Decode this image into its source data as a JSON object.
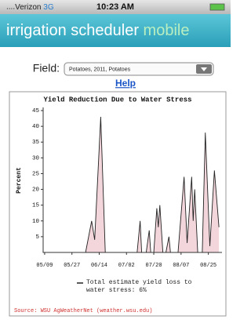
{
  "status_bar": {
    "carrier": "Verizon",
    "network": "3G",
    "time": "10:23 AM"
  },
  "header": {
    "title": "irrigation scheduler",
    "suffix": "mobile"
  },
  "field": {
    "label": "Field:",
    "selected": "Potatoes, 2011, Potatoes"
  },
  "help": "Help",
  "chart_data": {
    "type": "line",
    "title": "Yield Reduction Due to Water Stress",
    "y_label": "Percent",
    "x": [
      "05/08",
      "06/05",
      "06/09",
      "06/11",
      "06/15",
      "06/18",
      "07/09",
      "07/11",
      "07/12",
      "07/15",
      "07/17",
      "07/18",
      "07/20",
      "07/22",
      "07/23",
      "07/24",
      "07/26",
      "07/28",
      "07/30",
      "07/31",
      "08/05",
      "08/09",
      "08/11",
      "08/14",
      "08/15",
      "08/16",
      "08/18",
      "08/21",
      "08/23",
      "08/26",
      "08/29",
      "09/01"
    ],
    "series": [
      {
        "name": "Total estimate yield loss to water stress: 6%",
        "color": "#222222",
        "fill": "#f3d6dc",
        "values": [
          0,
          0,
          10,
          4,
          43,
          0,
          0,
          10,
          0,
          0,
          7,
          0,
          0,
          14,
          8,
          15,
          0,
          0,
          5,
          0,
          0,
          24,
          3,
          24,
          10,
          20,
          0,
          0,
          38,
          2,
          26,
          8
        ]
      }
    ],
    "xlim": [
      "05/08",
      "09/03"
    ],
    "xticks": [
      "05/09",
      "05/27",
      "06/14",
      "07/02",
      "07/20",
      "08/07",
      "08/25"
    ],
    "ylim": [
      0,
      46
    ],
    "yticks": [
      5,
      10,
      15,
      20,
      25,
      30,
      35,
      40,
      45
    ],
    "grid": false,
    "source": "Source: WSU AgWeatherNet (weather.wsu.edu)"
  }
}
